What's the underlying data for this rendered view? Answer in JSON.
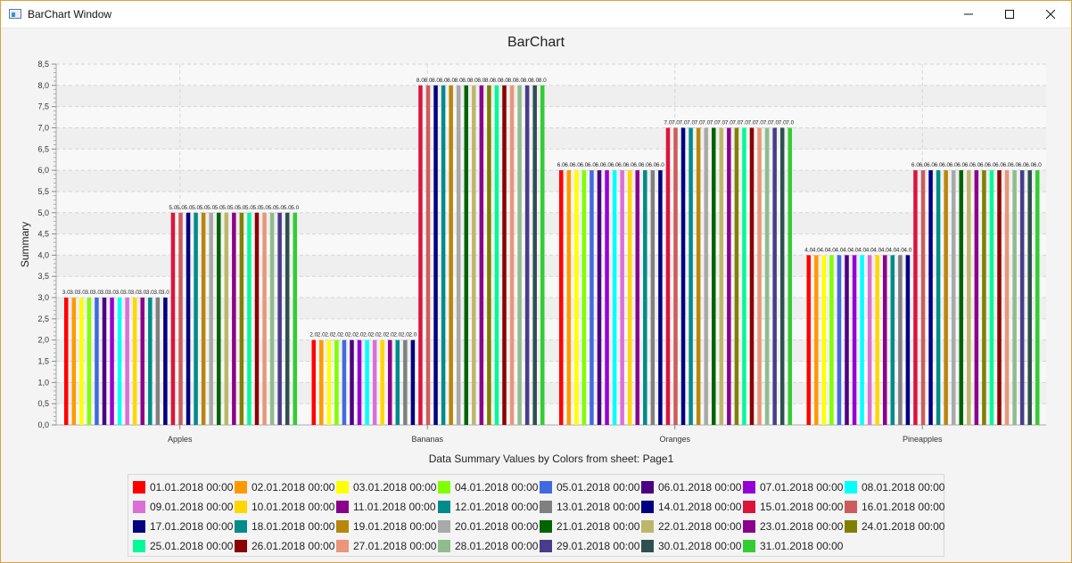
{
  "window": {
    "title": "BarChart Window"
  },
  "colors": [
    "#ff0000",
    "#ff9900",
    "#ffff00",
    "#80ff00",
    "#4169e1",
    "#4b0082",
    "#9400d3",
    "#00ffff",
    "#da70d6",
    "#ffd700",
    "#8b008b",
    "#008b8b",
    "#808080",
    "#000080",
    "#dc143c",
    "#cd5c5c",
    "#000080",
    "#008b8b",
    "#b8860b",
    "#a9a9a9",
    "#006400",
    "#bdb76b",
    "#8b008b",
    "#808000",
    "#00fa9a",
    "#8b0000",
    "#e9967a",
    "#8fbc8f",
    "#483d8b",
    "#2f4f4f",
    "#32cd32",
    "#40e0d0"
  ],
  "chart_data": {
    "type": "bar",
    "title": "BarChart",
    "xlabel": "Data Summary Values by Colors from sheet: Page1",
    "ylabel": "Summary",
    "ylim": [
      0,
      8.5
    ],
    "yticks": [
      "0,0",
      "0,5",
      "1,0",
      "1,5",
      "2,0",
      "2,5",
      "3,0",
      "3,5",
      "4,0",
      "4,5",
      "5,0",
      "5,5",
      "6,0",
      "6,5",
      "7,0",
      "7,5",
      "8,0",
      "8,5"
    ],
    "grid": true,
    "legend_position": "bottom",
    "categories": [
      "Apples",
      "Bananas",
      "Oranges",
      "Pineapples"
    ],
    "series": [
      {
        "name": "01.01.2018 00:00",
        "values": [
          3,
          2,
          6,
          4
        ]
      },
      {
        "name": "02.01.2018 00:00",
        "values": [
          3,
          2,
          6,
          4
        ]
      },
      {
        "name": "03.01.2018 00:00",
        "values": [
          3,
          2,
          6,
          4
        ]
      },
      {
        "name": "04.01.2018 00:00",
        "values": [
          3,
          2,
          6,
          4
        ]
      },
      {
        "name": "05.01.2018 00:00",
        "values": [
          3,
          2,
          6,
          4
        ]
      },
      {
        "name": "06.01.2018 00:00",
        "values": [
          3,
          2,
          6,
          4
        ]
      },
      {
        "name": "07.01.2018 00:00",
        "values": [
          3,
          2,
          6,
          4
        ]
      },
      {
        "name": "08.01.2018 00:00",
        "values": [
          3,
          2,
          6,
          4
        ]
      },
      {
        "name": "09.01.2018 00:00",
        "values": [
          3,
          2,
          6,
          4
        ]
      },
      {
        "name": "10.01.2018 00:00",
        "values": [
          3,
          2,
          6,
          4
        ]
      },
      {
        "name": "11.01.2018 00:00",
        "values": [
          3,
          2,
          6,
          4
        ]
      },
      {
        "name": "12.01.2018 00:00",
        "values": [
          3,
          2,
          6,
          4
        ]
      },
      {
        "name": "13.01.2018 00:00",
        "values": [
          3,
          2,
          6,
          4
        ]
      },
      {
        "name": "14.01.2018 00:00",
        "values": [
          3,
          2,
          6,
          4
        ]
      },
      {
        "name": "15.01.2018 00:00",
        "values": [
          5,
          8,
          7,
          6
        ]
      },
      {
        "name": "16.01.2018 00:00",
        "values": [
          5,
          8,
          7,
          6
        ]
      },
      {
        "name": "17.01.2018 00:00",
        "values": [
          5,
          8,
          7,
          6
        ]
      },
      {
        "name": "18.01.2018 00:00",
        "values": [
          5,
          8,
          7,
          6
        ]
      },
      {
        "name": "19.01.2018 00:00",
        "values": [
          5,
          8,
          7,
          6
        ]
      },
      {
        "name": "20.01.2018 00:00",
        "values": [
          5,
          8,
          7,
          6
        ]
      },
      {
        "name": "21.01.2018 00:00",
        "values": [
          5,
          8,
          7,
          6
        ]
      },
      {
        "name": "22.01.2018 00:00",
        "values": [
          5,
          8,
          7,
          6
        ]
      },
      {
        "name": "23.01.2018 00:00",
        "values": [
          5,
          8,
          7,
          6
        ]
      },
      {
        "name": "24.01.2018 00:00",
        "values": [
          5,
          8,
          7,
          6
        ]
      },
      {
        "name": "25.01.2018 00:00",
        "values": [
          5,
          8,
          7,
          6
        ]
      },
      {
        "name": "26.01.2018 00:00",
        "values": [
          5,
          8,
          7,
          6
        ]
      },
      {
        "name": "27.01.2018 00:00",
        "values": [
          5,
          8,
          7,
          6
        ]
      },
      {
        "name": "28.01.2018 00:00",
        "values": [
          5,
          8,
          7,
          6
        ]
      },
      {
        "name": "29.01.2018 00:00",
        "values": [
          5,
          8,
          7,
          6
        ]
      },
      {
        "name": "30.01.2018 00:00",
        "values": [
          5,
          8,
          7,
          6
        ]
      },
      {
        "name": "31.01.2018 00:00",
        "values": [
          5,
          8,
          7,
          6
        ]
      }
    ],
    "data_labels": [
      "3.0",
      "2.0",
      "6.0",
      "4.0",
      "5.0",
      "8.0",
      "7.0",
      "6.0"
    ]
  }
}
